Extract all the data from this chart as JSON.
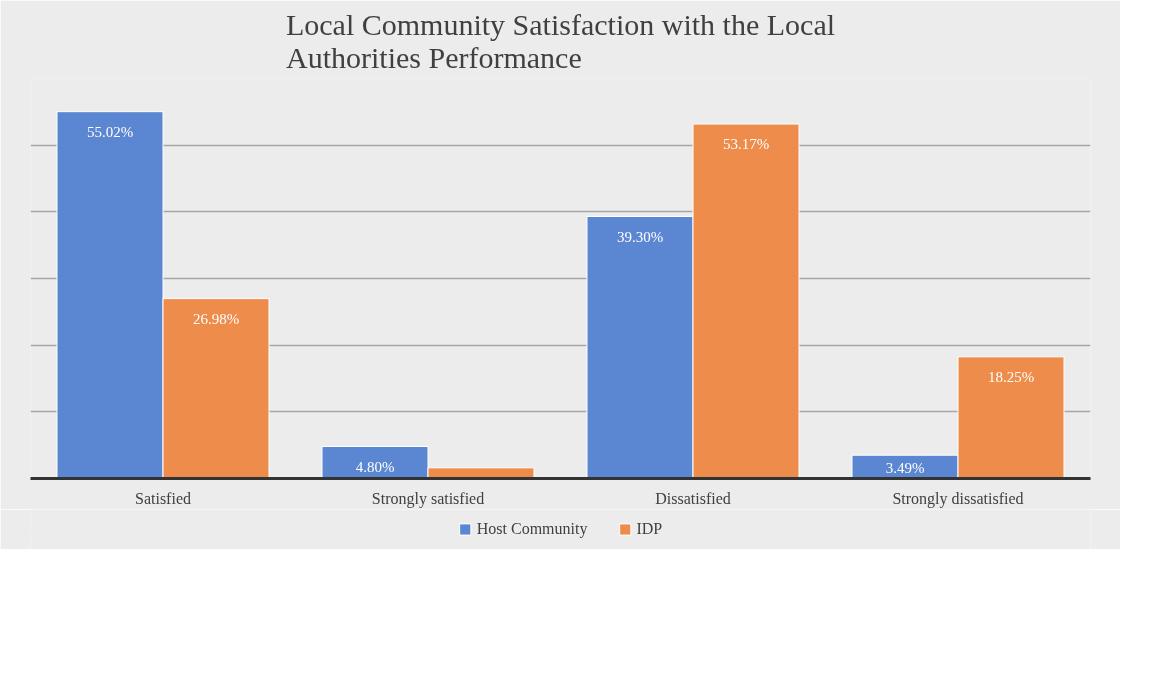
{
  "chart_data": {
    "type": "bar",
    "title": "Local Community Satisfaction with the Local Authorities Performance",
    "categories": [
      "Satisfied",
      "Strongly satisfied",
      "Dissatisfied",
      "Strongly dissatisfied"
    ],
    "series": [
      {
        "name": "Host Community",
        "color": "#5b86d1",
        "values": [
          55.02,
          4.8,
          39.3,
          3.49
        ],
        "value_labels": [
          "55.02%",
          "4.80%",
          "39.30%",
          "3.49%"
        ]
      },
      {
        "name": "IDP",
        "color": "#ee8c4c",
        "values": [
          26.98,
          1.6,
          53.17,
          18.25
        ],
        "value_labels": [
          "26.98%",
          null,
          "53.17%",
          "18.25%"
        ]
      }
    ],
    "ylim": [
      0,
      60
    ],
    "yticks": [
      {
        "value": 0,
        "label": null
      },
      {
        "value": 10,
        "label": null
      },
      {
        "value": 20,
        "label": null
      },
      {
        "value": 30,
        "label": null
      },
      {
        "value": 40,
        "label": null
      },
      {
        "value": 50,
        "label": null
      },
      {
        "value": 60,
        "label": null
      }
    ],
    "tick_labels": "x",
    "grid": "y",
    "legend": "bottom"
  }
}
